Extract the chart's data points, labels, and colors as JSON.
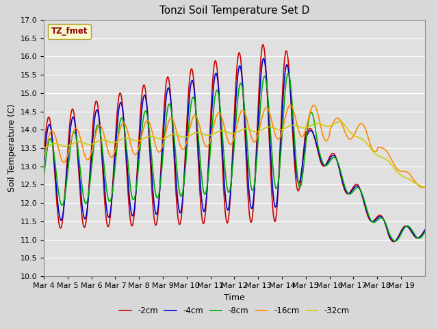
{
  "title": "Tonzi Soil Temperature Set D",
  "xlabel": "Time",
  "ylabel": "Soil Temperature (C)",
  "ylim": [
    10.0,
    17.0
  ],
  "yticks": [
    10.0,
    10.5,
    11.0,
    11.5,
    12.0,
    12.5,
    13.0,
    13.5,
    14.0,
    14.5,
    15.0,
    15.5,
    16.0,
    16.5,
    17.0
  ],
  "xtick_labels": [
    "Mar 4",
    "Mar 5",
    "Mar 6",
    "Mar 7",
    "Mar 8",
    "Mar 9",
    "Mar 10",
    "Mar 11",
    "Mar 12",
    "Mar 13",
    "Mar 14",
    "Mar 15",
    "Mar 16",
    "Mar 17",
    "Mar 18",
    "Mar 19"
  ],
  "legend_label": "TZ_fmet",
  "series_labels": [
    "-2cm",
    "-4cm",
    "-8cm",
    "-16cm",
    "-32cm"
  ],
  "series_colors": [
    "#cc0000",
    "#0000cc",
    "#00aa00",
    "#ff8800",
    "#cccc00"
  ],
  "line_widths": [
    1.2,
    1.2,
    1.2,
    1.2,
    1.2
  ],
  "background_color": "#e8e8e8",
  "grid_color": "#ffffff",
  "title_fontsize": 11,
  "axis_label_fontsize": 9,
  "tick_fontsize": 8
}
